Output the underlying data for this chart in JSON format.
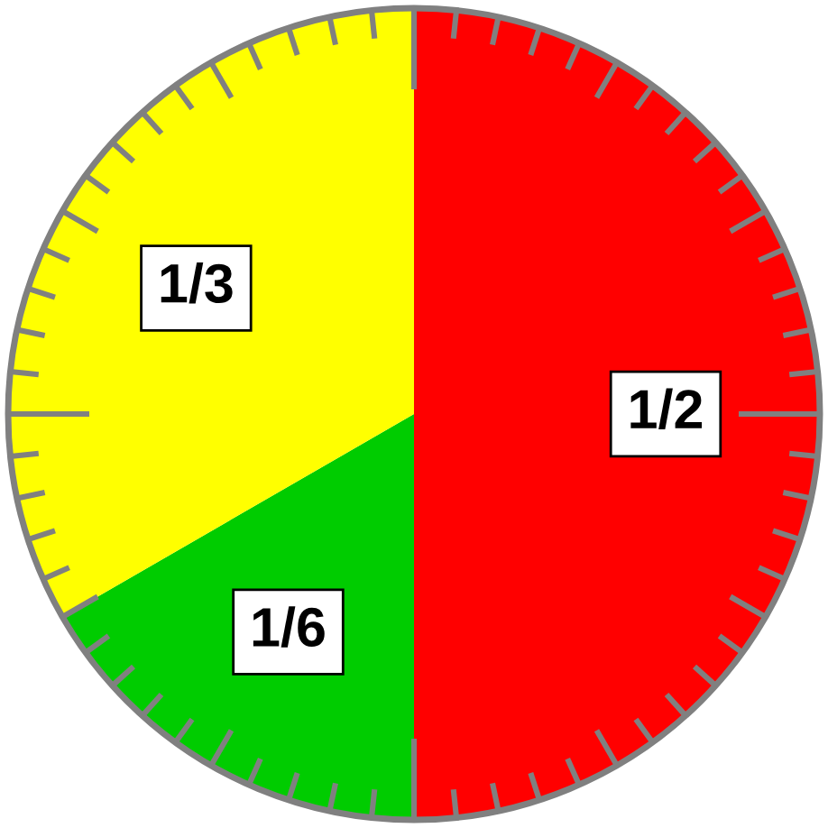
{
  "chart_data": {
    "type": "pie",
    "categories": [
      null,
      null,
      null
    ],
    "values": [
      0.5,
      0.16667,
      0.33333
    ],
    "value_labels": [
      "1/2",
      "1/6",
      "1/3"
    ],
    "colors": [
      "#ff0000",
      "#00cc00",
      "#ffff00"
    ]
  }
}
